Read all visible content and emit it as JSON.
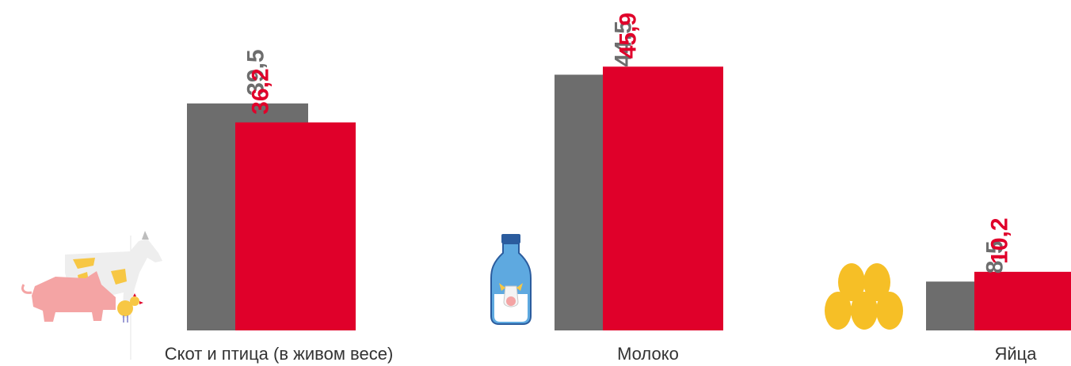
{
  "chart_data": {
    "type": "bar",
    "categories": [
      "Скот и птица (в живом весе)",
      "Молоко",
      "Яйца"
    ],
    "series": [
      {
        "values": [
          39.5,
          44.5,
          8.5
        ],
        "labels": [
          "39,5",
          "44,5",
          "8,5"
        ]
      },
      {
        "values": [
          36.2,
          45.9,
          10.2
        ],
        "labels": [
          "36,2",
          "45,9",
          "10,2"
        ]
      }
    ],
    "colors": [
      "#6d6d6d",
      "#e0002a"
    ],
    "label_colors": [
      "#6d6d6d",
      "#e0002a"
    ],
    "grid": false,
    "legend": "none"
  },
  "icons": [
    "livestock-icon",
    "milk-bottle-icon",
    "eggs-icon"
  ]
}
